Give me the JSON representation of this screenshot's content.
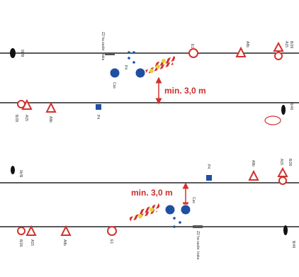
{
  "top": {
    "dimension": "min. 3,0 m",
    "labels": {
      "left_end": "B/46",
      "barrier": "Z2 ha saobr. traka",
      "yield": "Cas",
      "post": "P4",
      "circle": "E1",
      "triangle": "A8b",
      "pair_triangle": "A15",
      "pair_circle": "B/26",
      "low_pair": "A15",
      "low_pair_circle": "B/26",
      "low_triangle": "A8b",
      "low_square": "P4",
      "right_end": "B/46"
    }
  },
  "bottom": {
    "dimension": "min. 3,0 m",
    "labels": {
      "left_end": "B/46",
      "square": "P4",
      "triangle": "A8b",
      "pair_triangle": "A15",
      "pair_circle": "B/26",
      "low_pair_circle": "B/26",
      "low_pair": "A15",
      "low_triangle": "A8b",
      "low_circle": "E1",
      "yield": "Cas",
      "barrier": "Z2 ha saobr. traka",
      "right_end": "B/46"
    }
  }
}
